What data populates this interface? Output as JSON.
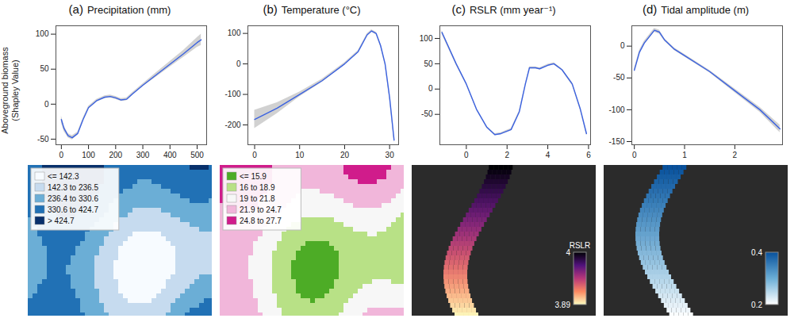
{
  "chart_data": [
    {
      "type": "line",
      "letter": "(a)",
      "title": "Precipitation (mm)",
      "ylabel": "Aboveground biomass (Shapley Value)",
      "color": "#3b62e0",
      "x": [
        0,
        10,
        25,
        40,
        60,
        80,
        100,
        130,
        160,
        180,
        200,
        220,
        240,
        260,
        300,
        350,
        400,
        450,
        500,
        515
      ],
      "values": [
        -22,
        -35,
        -45,
        -48,
        -42,
        -22,
        -5,
        5,
        10,
        11,
        9,
        6,
        7,
        14,
        27,
        42,
        57,
        72,
        88,
        92
      ],
      "lower": [
        -27,
        -39,
        -48,
        -51,
        -44,
        -24,
        -7,
        3,
        8,
        9,
        7,
        4,
        5,
        12,
        25,
        39,
        53,
        67,
        81,
        84
      ],
      "upper": [
        -17,
        -31,
        -42,
        -45,
        -40,
        -20,
        -3,
        7,
        12,
        13,
        11,
        8,
        9,
        16,
        29,
        45,
        61,
        77,
        95,
        100
      ],
      "xlim": [
        -20,
        535
      ],
      "ylim": [
        -58,
        112
      ],
      "xticks": [
        0,
        100,
        200,
        300,
        400,
        500
      ],
      "yticks": [
        -50,
        0,
        50,
        100
      ]
    },
    {
      "type": "line",
      "letter": "(b)",
      "title": "Temperature (°C)",
      "color": "#3b62e0",
      "x": [
        0,
        5,
        10,
        15,
        20,
        23,
        25,
        26,
        27,
        28,
        29,
        30,
        31
      ],
      "values": [
        -182,
        -145,
        -100,
        -55,
        0,
        40,
        95,
        108,
        100,
        60,
        0,
        -110,
        -250
      ],
      "lower": [
        -212,
        -163,
        -108,
        -60,
        -4,
        36,
        91,
        104,
        96,
        55,
        -6,
        -118,
        -260
      ],
      "upper": [
        -152,
        -127,
        -92,
        -50,
        4,
        44,
        99,
        112,
        104,
        65,
        6,
        -102,
        -240
      ],
      "xlim": [
        -1.5,
        32
      ],
      "ylim": [
        -265,
        125
      ],
      "xticks": [
        0,
        10,
        20,
        30
      ],
      "yticks": [
        -200,
        -100,
        0,
        100
      ]
    },
    {
      "type": "line",
      "letter": "(c)",
      "title": "RSLR (mm year⁻¹)",
      "color": "#3b62e0",
      "x": [
        -1.2,
        -0.5,
        0,
        0.5,
        1,
        1.4,
        1.7,
        2.2,
        2.6,
        2.9,
        3.1,
        3.4,
        3.6,
        4,
        4.3,
        4.7,
        5.2,
        5.6,
        5.9
      ],
      "values": [
        112,
        50,
        10,
        -40,
        -75,
        -90,
        -88,
        -80,
        -45,
        10,
        42,
        42,
        40,
        47,
        50,
        38,
        10,
        -40,
        -88
      ],
      "lower": [
        108,
        47,
        8,
        -42,
        -77,
        -92,
        -90,
        -82,
        -47,
        8,
        40,
        40,
        38,
        45,
        48,
        36,
        7,
        -43,
        -92
      ],
      "upper": [
        116,
        53,
        12,
        -38,
        -73,
        -88,
        -86,
        -78,
        -43,
        12,
        44,
        44,
        42,
        49,
        52,
        40,
        13,
        -37,
        -84
      ],
      "xlim": [
        -1.3,
        6.1
      ],
      "ylim": [
        -110,
        125
      ],
      "xticks": [
        0,
        2,
        4,
        6
      ],
      "yticks": [
        -50,
        0,
        50,
        100
      ]
    },
    {
      "type": "line",
      "letter": "(d)",
      "title": "Tidal amplitude (m)",
      "color": "#3b62e0",
      "x": [
        0,
        0.1,
        0.2,
        0.3,
        0.4,
        0.5,
        0.6,
        0.8,
        1,
        1.5,
        2,
        2.5,
        2.9
      ],
      "values": [
        -38,
        -10,
        5,
        15,
        25,
        22,
        10,
        -5,
        -15,
        -40,
        -70,
        -100,
        -130
      ],
      "lower": [
        -41,
        -13,
        2,
        12,
        22,
        19,
        8,
        -7,
        -17,
        -42,
        -73,
        -104,
        -136
      ],
      "upper": [
        -35,
        -7,
        8,
        18,
        28,
        25,
        12,
        -3,
        -13,
        -38,
        -67,
        -96,
        -124
      ],
      "xlim": [
        -0.05,
        2.95
      ],
      "ylim": [
        -155,
        32
      ],
      "xticks": [
        0,
        1,
        2
      ],
      "yticks": [
        -150,
        -100,
        -50,
        0
      ]
    }
  ],
  "maps": [
    {
      "legend": [
        {
          "label": "<= 142.3",
          "color": "#f7fbff"
        },
        {
          "label": "142.3 to 236.5",
          "color": "#c6dbef"
        },
        {
          "label": "236.4 to 330.6",
          "color": "#6baed6"
        },
        {
          "label": "330.6 to 424.7",
          "color": "#2171b5"
        },
        {
          "label": "> 424.7",
          "color": "#08306b"
        }
      ]
    },
    {
      "legend": [
        {
          "label": "<= 15.9",
          "color": "#4dac26"
        },
        {
          "label": "16 to 18.9",
          "color": "#b8e186"
        },
        {
          "label": "19 to 21.8",
          "color": "#f7f7f7"
        },
        {
          "label": "21.9 to 24.7",
          "color": "#f1b6da"
        },
        {
          "label": "24.8 to 27.7",
          "color": "#d01c8b"
        }
      ]
    },
    {
      "colorbar": {
        "title": "RSLR",
        "range": [
          3.89,
          4
        ],
        "ticks": [
          3.89,
          4
        ],
        "colors": [
          "#fcfdbf",
          "#fc8961",
          "#b73779",
          "#51127c",
          "#000004"
        ]
      }
    },
    {
      "colorbar": {
        "range": [
          0.2,
          0.4
        ],
        "ticks": [
          0.2,
          0.4
        ],
        "colors": [
          "#ffffff",
          "#6baed6",
          "#08519c"
        ]
      }
    }
  ]
}
